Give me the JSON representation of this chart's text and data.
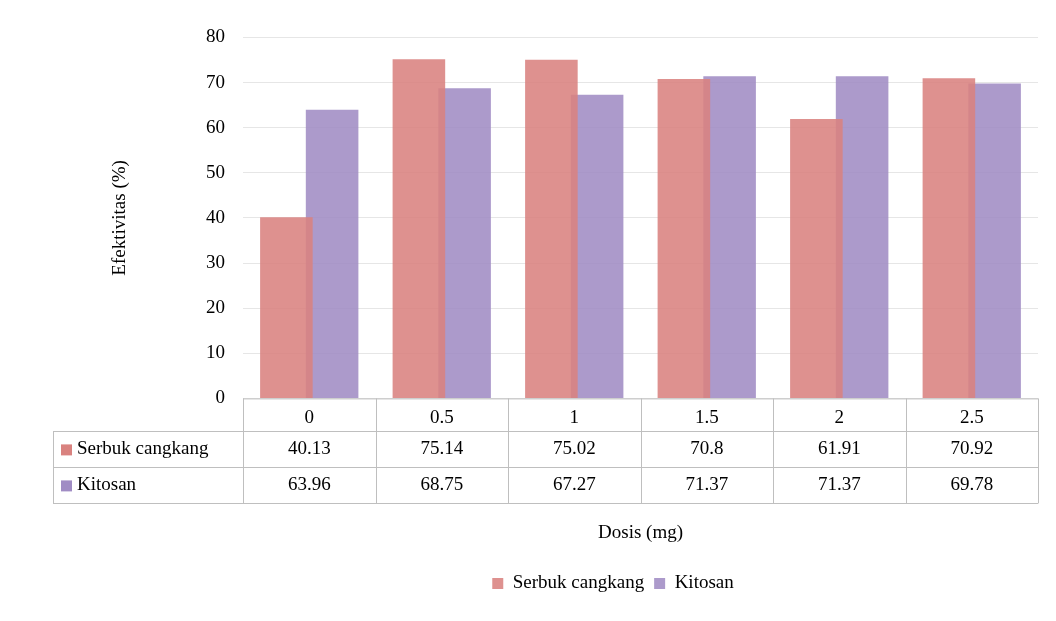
{
  "chart_data": {
    "type": "bar",
    "xlabel": "Dosis (mg)",
    "ylabel": "Efektivitas (%)",
    "categories": [
      "0",
      "0.5",
      "1",
      "1.5",
      "2",
      "2.5"
    ],
    "series": [
      {
        "name": "Serbuk cangkang",
        "color": "#d9827f",
        "values": [
          40.13,
          75.14,
          75.02,
          70.8,
          61.91,
          70.92
        ]
      },
      {
        "name": "Kitosan",
        "color": "#a08cc4",
        "values": [
          63.96,
          68.75,
          67.27,
          71.37,
          71.37,
          69.78
        ]
      }
    ],
    "ylim": [
      0,
      80
    ],
    "yticks": [
      0,
      10,
      20,
      30,
      40,
      50,
      60,
      70,
      80
    ],
    "grid": "y",
    "legend": "bottom",
    "data_labels": true
  }
}
